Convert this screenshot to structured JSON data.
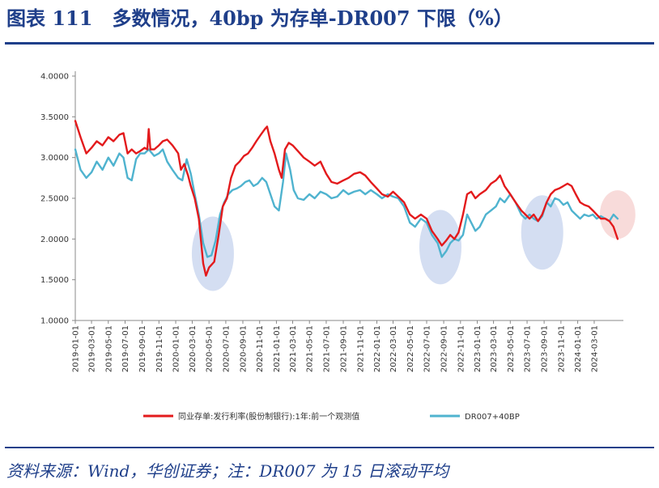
{
  "title": "图表 111　多数情况，40bp 为存单-DR007 下限（%）",
  "source": "资料来源：Wind，华创证券；注：DR007 为 15 日滚动平均",
  "colors": {
    "series1": "#e31a1c",
    "series2": "#4fb3cf",
    "highlight_blue": "#c5d3ee",
    "highlight_red": "#f6cfcd",
    "accent": "#1f3f8a"
  },
  "chart_data": {
    "type": "line",
    "ylim": [
      1.0,
      4.0
    ],
    "y_ticks": [
      "4.0000",
      "3.5000",
      "3.0000",
      "2.5000",
      "2.0000",
      "1.5000",
      "1.0000"
    ],
    "x_ticks": [
      "2019-01-01",
      "2019-03-01",
      "2019-05-01",
      "2019-07-01",
      "2019-09-01",
      "2019-11-01",
      "2020-01-01",
      "2020-03-01",
      "2020-05-01",
      "2020-07-01",
      "2020-09-01",
      "2020-11-01",
      "2021-01-01",
      "2021-03-01",
      "2021-05-01",
      "2021-07-01",
      "2021-09-01",
      "2021-11-01",
      "2022-01-01",
      "2022-03-01",
      "2022-05-01",
      "2022-07-01",
      "2022-09-01",
      "2022-11-01",
      "2023-01-01",
      "2023-03-01",
      "2023-05-01",
      "2023-07-01",
      "2023-09-01",
      "2023-11-01",
      "2024-01-01",
      "2024-03-01"
    ],
    "x_range": [
      "2019-01-01",
      "2024-06-15"
    ],
    "legend_position": "bottom",
    "grid": false,
    "series": [
      {
        "name": "同业存单:发行利率(股份制银行):1年:前一个观测值",
        "points": [
          [
            "2019-01-01",
            3.45
          ],
          [
            "2019-01-20",
            3.25
          ],
          [
            "2019-02-10",
            3.05
          ],
          [
            "2019-03-01",
            3.12
          ],
          [
            "2019-03-20",
            3.2
          ],
          [
            "2019-04-10",
            3.15
          ],
          [
            "2019-05-01",
            3.25
          ],
          [
            "2019-05-20",
            3.2
          ],
          [
            "2019-06-10",
            3.28
          ],
          [
            "2019-06-25",
            3.3
          ],
          [
            "2019-07-10",
            3.05
          ],
          [
            "2019-07-25",
            3.1
          ],
          [
            "2019-08-10",
            3.05
          ],
          [
            "2019-08-25",
            3.08
          ],
          [
            "2019-09-10",
            3.12
          ],
          [
            "2019-09-20",
            3.1
          ],
          [
            "2019-09-25",
            3.35
          ],
          [
            "2019-10-01",
            3.1
          ],
          [
            "2019-10-15",
            3.1
          ],
          [
            "2019-11-01",
            3.15
          ],
          [
            "2019-11-15",
            3.2
          ],
          [
            "2019-12-01",
            3.22
          ],
          [
            "2019-12-20",
            3.15
          ],
          [
            "2020-01-10",
            3.05
          ],
          [
            "2020-01-20",
            2.85
          ],
          [
            "2020-02-01",
            2.92
          ],
          [
            "2020-02-15",
            2.78
          ],
          [
            "2020-02-25",
            2.65
          ],
          [
            "2020-03-10",
            2.5
          ],
          [
            "2020-03-25",
            2.25
          ],
          [
            "2020-04-10",
            1.7
          ],
          [
            "2020-04-20",
            1.55
          ],
          [
            "2020-05-01",
            1.65
          ],
          [
            "2020-05-20",
            1.72
          ],
          [
            "2020-06-05",
            2.05
          ],
          [
            "2020-06-20",
            2.4
          ],
          [
            "2020-07-05",
            2.5
          ],
          [
            "2020-07-20",
            2.75
          ],
          [
            "2020-08-05",
            2.9
          ],
          [
            "2020-08-20",
            2.95
          ],
          [
            "2020-09-05",
            3.02
          ],
          [
            "2020-09-20",
            3.05
          ],
          [
            "2020-10-05",
            3.12
          ],
          [
            "2020-10-20",
            3.2
          ],
          [
            "2020-11-05",
            3.28
          ],
          [
            "2020-11-20",
            3.35
          ],
          [
            "2020-11-28",
            3.38
          ],
          [
            "2020-12-10",
            3.2
          ],
          [
            "2020-12-25",
            3.05
          ],
          [
            "2021-01-10",
            2.85
          ],
          [
            "2021-01-20",
            2.75
          ],
          [
            "2021-02-01",
            3.1
          ],
          [
            "2021-02-15",
            3.18
          ],
          [
            "2021-03-01",
            3.15
          ],
          [
            "2021-03-20",
            3.08
          ],
          [
            "2021-04-10",
            3.0
          ],
          [
            "2021-05-01",
            2.95
          ],
          [
            "2021-05-20",
            2.9
          ],
          [
            "2021-06-10",
            2.95
          ],
          [
            "2021-07-01",
            2.8
          ],
          [
            "2021-07-20",
            2.7
          ],
          [
            "2021-08-10",
            2.68
          ],
          [
            "2021-09-01",
            2.72
          ],
          [
            "2021-09-20",
            2.75
          ],
          [
            "2021-10-10",
            2.8
          ],
          [
            "2021-11-01",
            2.82
          ],
          [
            "2021-11-20",
            2.78
          ],
          [
            "2021-12-10",
            2.7
          ],
          [
            "2022-01-01",
            2.62
          ],
          [
            "2022-01-20",
            2.55
          ],
          [
            "2022-02-10",
            2.52
          ],
          [
            "2022-03-01",
            2.58
          ],
          [
            "2022-03-20",
            2.52
          ],
          [
            "2022-04-10",
            2.45
          ],
          [
            "2022-05-01",
            2.3
          ],
          [
            "2022-05-20",
            2.25
          ],
          [
            "2022-06-10",
            2.3
          ],
          [
            "2022-07-01",
            2.25
          ],
          [
            "2022-07-20",
            2.1
          ],
          [
            "2022-08-10",
            2.0
          ],
          [
            "2022-08-25",
            1.92
          ],
          [
            "2022-09-10",
            1.98
          ],
          [
            "2022-09-25",
            2.05
          ],
          [
            "2022-10-10",
            2.0
          ],
          [
            "2022-10-25",
            2.08
          ],
          [
            "2022-11-10",
            2.3
          ],
          [
            "2022-11-25",
            2.55
          ],
          [
            "2022-12-10",
            2.58
          ],
          [
            "2022-12-25",
            2.5
          ],
          [
            "2023-01-10",
            2.55
          ],
          [
            "2023-02-01",
            2.6
          ],
          [
            "2023-02-20",
            2.68
          ],
          [
            "2023-03-10",
            2.72
          ],
          [
            "2023-03-25",
            2.78
          ],
          [
            "2023-04-10",
            2.65
          ],
          [
            "2023-05-01",
            2.55
          ],
          [
            "2023-05-20",
            2.45
          ],
          [
            "2023-06-10",
            2.35
          ],
          [
            "2023-06-25",
            2.3
          ],
          [
            "2023-07-10",
            2.25
          ],
          [
            "2023-07-25",
            2.3
          ],
          [
            "2023-08-10",
            2.22
          ],
          [
            "2023-08-25",
            2.3
          ],
          [
            "2023-09-10",
            2.45
          ],
          [
            "2023-09-25",
            2.55
          ],
          [
            "2023-10-10",
            2.6
          ],
          [
            "2023-10-25",
            2.62
          ],
          [
            "2023-11-10",
            2.65
          ],
          [
            "2023-11-25",
            2.68
          ],
          [
            "2023-12-10",
            2.65
          ],
          [
            "2023-12-25",
            2.55
          ],
          [
            "2024-01-10",
            2.45
          ],
          [
            "2024-01-25",
            2.42
          ],
          [
            "2024-02-10",
            2.4
          ],
          [
            "2024-02-25",
            2.35
          ],
          [
            "2024-03-10",
            2.3
          ],
          [
            "2024-03-25",
            2.25
          ],
          [
            "2024-04-10",
            2.25
          ],
          [
            "2024-04-25",
            2.22
          ],
          [
            "2024-05-10",
            2.15
          ],
          [
            "2024-05-25",
            2.0
          ]
        ]
      },
      {
        "name": "DR007+40BP",
        "points": [
          [
            "2019-01-01",
            3.1
          ],
          [
            "2019-01-20",
            2.85
          ],
          [
            "2019-02-10",
            2.75
          ],
          [
            "2019-03-01",
            2.82
          ],
          [
            "2019-03-20",
            2.95
          ],
          [
            "2019-04-10",
            2.85
          ],
          [
            "2019-05-01",
            3.0
          ],
          [
            "2019-05-20",
            2.9
          ],
          [
            "2019-06-10",
            3.05
          ],
          [
            "2019-06-25",
            3.0
          ],
          [
            "2019-07-10",
            2.75
          ],
          [
            "2019-07-25",
            2.72
          ],
          [
            "2019-08-10",
            2.98
          ],
          [
            "2019-08-25",
            3.05
          ],
          [
            "2019-09-10",
            3.05
          ],
          [
            "2019-09-25",
            3.1
          ],
          [
            "2019-10-15",
            3.02
          ],
          [
            "2019-11-01",
            3.05
          ],
          [
            "2019-11-15",
            3.1
          ],
          [
            "2019-12-01",
            2.95
          ],
          [
            "2019-12-20",
            2.85
          ],
          [
            "2020-01-10",
            2.75
          ],
          [
            "2020-01-25",
            2.72
          ],
          [
            "2020-02-10",
            2.98
          ],
          [
            "2020-02-25",
            2.8
          ],
          [
            "2020-03-10",
            2.55
          ],
          [
            "2020-03-25",
            2.3
          ],
          [
            "2020-04-10",
            1.95
          ],
          [
            "2020-04-25",
            1.78
          ],
          [
            "2020-05-10",
            1.8
          ],
          [
            "2020-05-25",
            1.98
          ],
          [
            "2020-06-10",
            2.3
          ],
          [
            "2020-06-25",
            2.45
          ],
          [
            "2020-07-10",
            2.55
          ],
          [
            "2020-07-25",
            2.6
          ],
          [
            "2020-08-10",
            2.62
          ],
          [
            "2020-08-25",
            2.65
          ],
          [
            "2020-09-10",
            2.7
          ],
          [
            "2020-09-25",
            2.72
          ],
          [
            "2020-10-10",
            2.65
          ],
          [
            "2020-10-25",
            2.68
          ],
          [
            "2020-11-10",
            2.75
          ],
          [
            "2020-11-25",
            2.7
          ],
          [
            "2020-12-10",
            2.55
          ],
          [
            "2020-12-25",
            2.4
          ],
          [
            "2021-01-10",
            2.35
          ],
          [
            "2021-01-25",
            2.7
          ],
          [
            "2021-02-05",
            3.05
          ],
          [
            "2021-02-20",
            2.85
          ],
          [
            "2021-03-05",
            2.6
          ],
          [
            "2021-03-20",
            2.5
          ],
          [
            "2021-04-10",
            2.48
          ],
          [
            "2021-05-01",
            2.55
          ],
          [
            "2021-05-20",
            2.5
          ],
          [
            "2021-06-10",
            2.58
          ],
          [
            "2021-07-01",
            2.55
          ],
          [
            "2021-07-20",
            2.5
          ],
          [
            "2021-08-10",
            2.52
          ],
          [
            "2021-09-01",
            2.6
          ],
          [
            "2021-09-20",
            2.55
          ],
          [
            "2021-10-10",
            2.58
          ],
          [
            "2021-11-01",
            2.6
          ],
          [
            "2021-11-20",
            2.55
          ],
          [
            "2021-12-10",
            2.6
          ],
          [
            "2022-01-01",
            2.55
          ],
          [
            "2022-01-20",
            2.5
          ],
          [
            "2022-02-10",
            2.55
          ],
          [
            "2022-03-01",
            2.52
          ],
          [
            "2022-03-20",
            2.5
          ],
          [
            "2022-04-10",
            2.4
          ],
          [
            "2022-05-01",
            2.2
          ],
          [
            "2022-05-20",
            2.15
          ],
          [
            "2022-06-10",
            2.25
          ],
          [
            "2022-07-01",
            2.2
          ],
          [
            "2022-07-20",
            2.05
          ],
          [
            "2022-08-10",
            1.95
          ],
          [
            "2022-08-25",
            1.78
          ],
          [
            "2022-09-10",
            1.85
          ],
          [
            "2022-09-25",
            1.95
          ],
          [
            "2022-10-10",
            2.0
          ],
          [
            "2022-10-25",
            1.98
          ],
          [
            "2022-11-10",
            2.05
          ],
          [
            "2022-11-25",
            2.3
          ],
          [
            "2022-12-10",
            2.2
          ],
          [
            "2022-12-25",
            2.1
          ],
          [
            "2023-01-10",
            2.15
          ],
          [
            "2023-02-01",
            2.3
          ],
          [
            "2023-02-20",
            2.35
          ],
          [
            "2023-03-10",
            2.4
          ],
          [
            "2023-03-25",
            2.5
          ],
          [
            "2023-04-10",
            2.45
          ],
          [
            "2023-05-01",
            2.55
          ],
          [
            "2023-05-20",
            2.45
          ],
          [
            "2023-06-10",
            2.3
          ],
          [
            "2023-06-25",
            2.25
          ],
          [
            "2023-07-10",
            2.3
          ],
          [
            "2023-07-25",
            2.25
          ],
          [
            "2023-08-10",
            2.22
          ],
          [
            "2023-08-25",
            2.28
          ],
          [
            "2023-09-10",
            2.45
          ],
          [
            "2023-09-25",
            2.4
          ],
          [
            "2023-10-10",
            2.5
          ],
          [
            "2023-10-25",
            2.48
          ],
          [
            "2023-11-10",
            2.42
          ],
          [
            "2023-11-25",
            2.45
          ],
          [
            "2023-12-10",
            2.35
          ],
          [
            "2023-12-25",
            2.3
          ],
          [
            "2024-01-10",
            2.25
          ],
          [
            "2024-01-25",
            2.3
          ],
          [
            "2024-02-10",
            2.28
          ],
          [
            "2024-02-25",
            2.3
          ],
          [
            "2024-03-10",
            2.25
          ],
          [
            "2024-03-25",
            2.28
          ],
          [
            "2024-04-10",
            2.25
          ],
          [
            "2024-04-25",
            2.22
          ],
          [
            "2024-05-10",
            2.3
          ],
          [
            "2024-05-25",
            2.25
          ]
        ]
      }
    ],
    "highlight_ellipses": [
      {
        "center": [
          "2020-05-15",
          1.82
        ],
        "color": "blue"
      },
      {
        "center": [
          "2022-08-20",
          1.9
        ],
        "color": "blue"
      },
      {
        "center": [
          "2023-08-25",
          2.08
        ],
        "color": "blue"
      },
      {
        "center": [
          "2024-05-25",
          2.3
        ],
        "color": "red"
      }
    ]
  }
}
